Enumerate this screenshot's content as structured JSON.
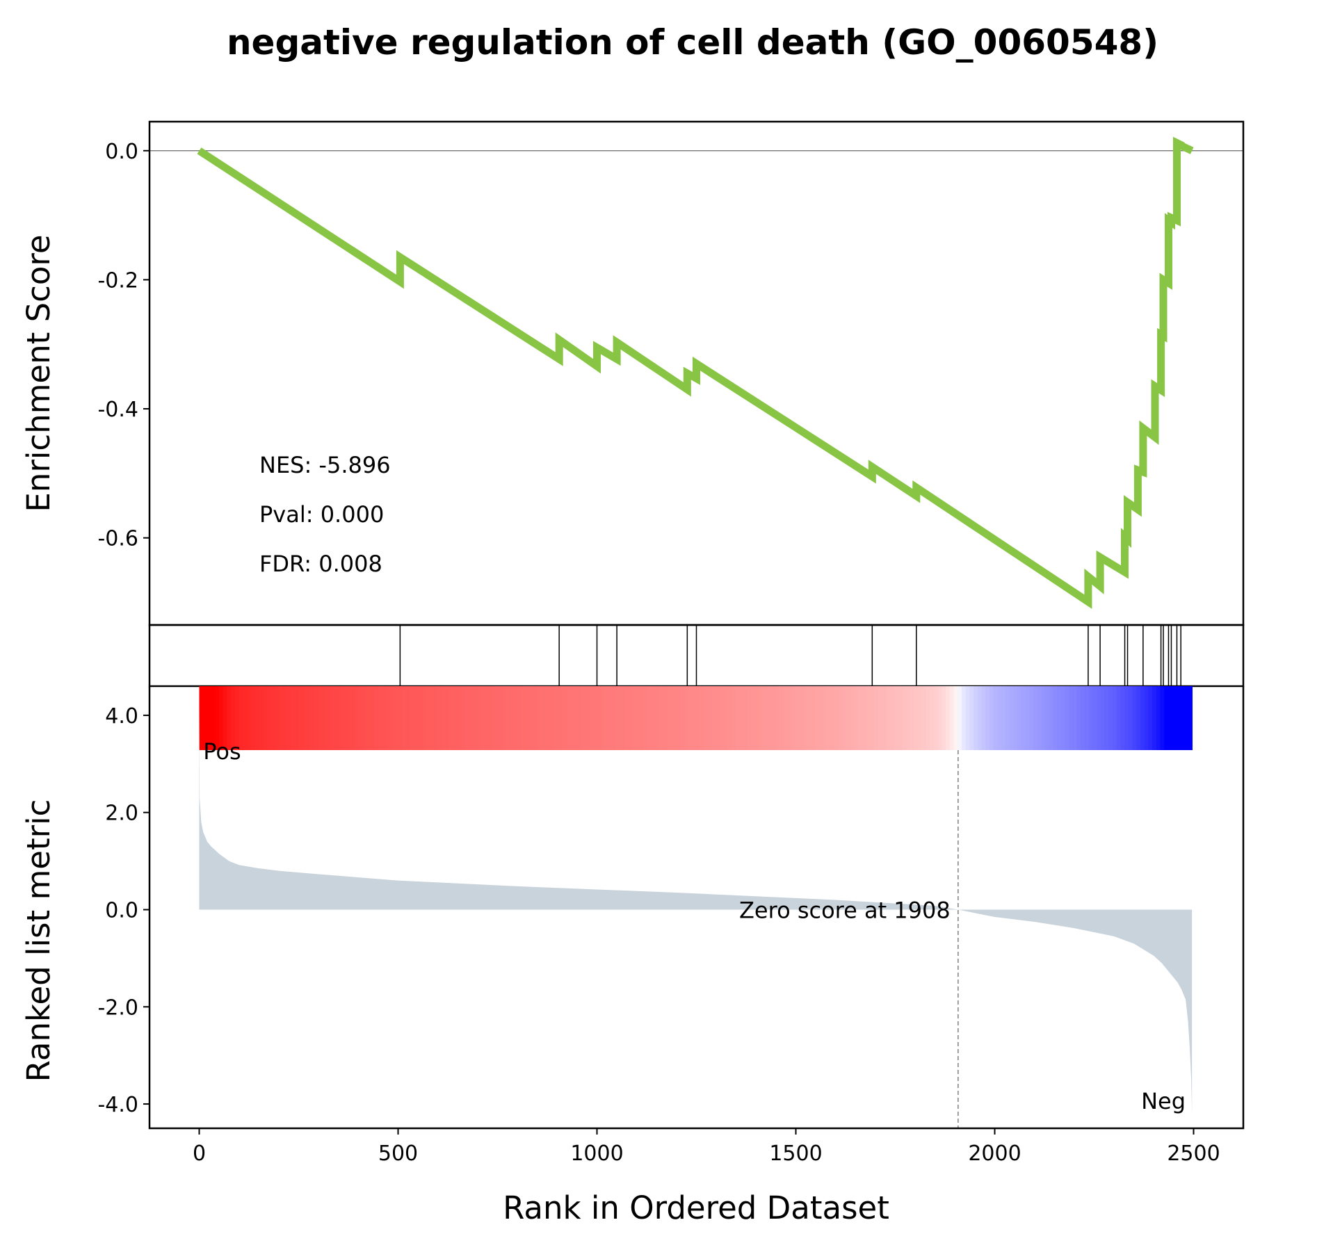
{
  "chart_data": {
    "type": "line",
    "title": "negative regulation of cell death (GO_0060548)",
    "xlabel": "Rank in Ordered Dataset",
    "xlim": [
      -125,
      2625
    ],
    "xticks": [
      0,
      500,
      1000,
      1500,
      2000,
      2500
    ],
    "es_panel": {
      "ylabel": "Enrichment Score",
      "ylim": [
        -0.735,
        0.045
      ],
      "yticks": [
        0.0,
        -0.2,
        -0.4,
        -0.6
      ],
      "ytick_labels": [
        "0.0",
        "-0.2",
        "-0.4",
        "-0.6"
      ],
      "line_color": "#88c544",
      "zero_line": 0.0,
      "series": [
        {
          "x": [
            0,
            505,
            505,
            905,
            905,
            1000,
            1000,
            1050,
            1050,
            1227,
            1227,
            1250,
            1250,
            1692,
            1692,
            1803,
            1803,
            2235,
            2235,
            2265,
            2265,
            2327,
            2327,
            2334,
            2334,
            2360,
            2360,
            2373,
            2373,
            2403,
            2403,
            2418,
            2418,
            2424,
            2424,
            2437,
            2437,
            2444,
            2444,
            2458,
            2458,
            2468,
            2468,
            2496
          ],
          "y": [
            0.0,
            -0.203,
            -0.165,
            -0.323,
            -0.293,
            -0.334,
            -0.305,
            -0.323,
            -0.297,
            -0.37,
            -0.345,
            -0.353,
            -0.33,
            -0.505,
            -0.49,
            -0.535,
            -0.522,
            -0.699,
            -0.66,
            -0.675,
            -0.63,
            -0.653,
            -0.598,
            -0.602,
            -0.545,
            -0.556,
            -0.495,
            -0.498,
            -0.43,
            -0.444,
            -0.365,
            -0.371,
            -0.285,
            -0.287,
            -0.2,
            -0.205,
            -0.108,
            -0.111,
            -0.104,
            -0.108,
            0.012,
            0.009,
            0.008,
            0.0
          ]
        }
      ],
      "annotations": {
        "nes": "NES: -5.896",
        "pval": "Pval: 0.000",
        "fdr": "FDR: 0.008"
      }
    },
    "hits_panel": {
      "positions": [
        505,
        905,
        1000,
        1050,
        1227,
        1250,
        1692,
        1803,
        2235,
        2265,
        2327,
        2334,
        2373,
        2418,
        2424,
        2437,
        2444,
        2458,
        2468
      ]
    },
    "heatmap_panel": {
      "colormap": "bwr",
      "color_pos": "#ff0000",
      "color_zero": "#ffffff",
      "color_neg": "#0000ff"
    },
    "metric_panel": {
      "ylabel": "Ranked list metric",
      "ylim": [
        -4.5,
        4.6
      ],
      "yticks": [
        4.0,
        2.0,
        0.0,
        -2.0,
        -4.0
      ],
      "ytick_labels": [
        "4.0",
        "2.0",
        "0.0",
        "-2.0",
        "-4.0"
      ],
      "fill_color": "#c9d3dc",
      "n_genes": 2496,
      "zero_rank": 1908,
      "zero_label": "Zero score at 1908",
      "pos_label": "Pos",
      "neg_label": "Neg",
      "pos_label_color": "#ff0000",
      "neg_label_color": "#0000ff",
      "profile": {
        "x": [
          0,
          1,
          5,
          10,
          20,
          30,
          50,
          75,
          100,
          150,
          200,
          300,
          500,
          800,
          1200,
          1600,
          1850,
          1908,
          2000,
          2100,
          2200,
          2300,
          2350,
          2400,
          2420,
          2440,
          2460,
          2470,
          2480,
          2486,
          2490,
          2494,
          2496
        ],
        "y": [
          4.2,
          2.3,
          1.8,
          1.6,
          1.4,
          1.3,
          1.15,
          1.0,
          0.92,
          0.85,
          0.8,
          0.73,
          0.6,
          0.48,
          0.35,
          0.2,
          0.08,
          0.0,
          -0.15,
          -0.25,
          -0.38,
          -0.55,
          -0.7,
          -0.95,
          -1.1,
          -1.3,
          -1.5,
          -1.65,
          -1.85,
          -2.3,
          -2.8,
          -3.5,
          -4.2
        ]
      }
    }
  }
}
